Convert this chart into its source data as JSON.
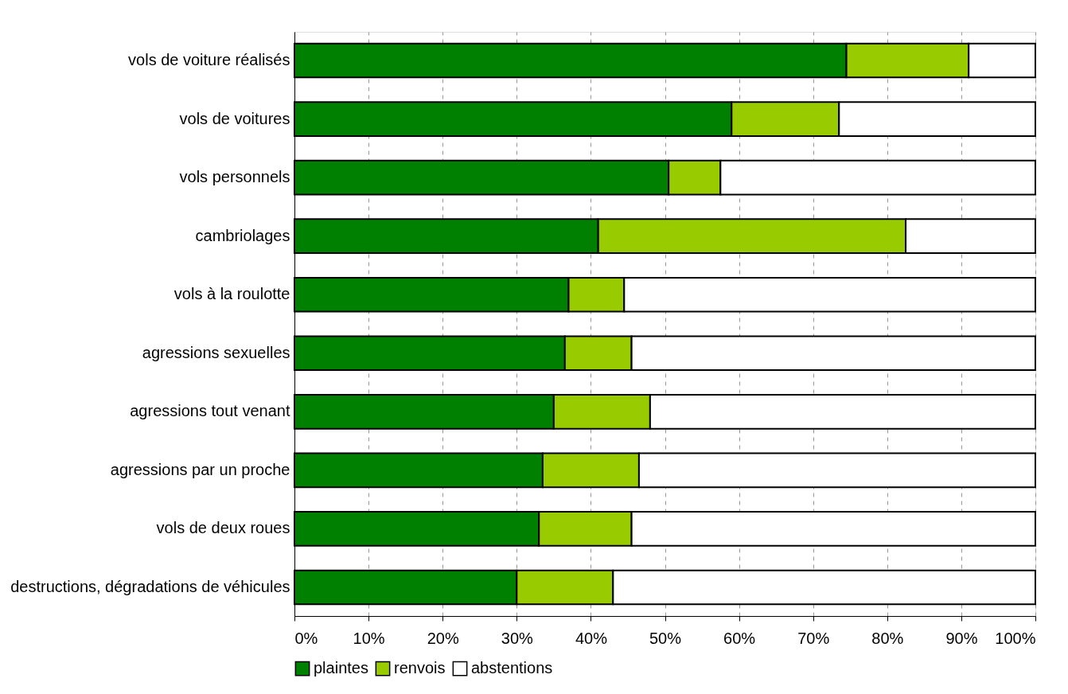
{
  "chart_data": {
    "type": "bar",
    "orientation": "horizontal",
    "stacked": true,
    "categories": [
      "vols de voiture réalisés",
      "vols de voitures",
      "vols personnels",
      "cambriolages",
      "vols à la roulotte",
      "agressions sexuelles",
      "agressions tout venant",
      "agressions par un proche",
      "vols de deux roues",
      "destructions, dégradations de véhicules"
    ],
    "series": [
      {
        "name": "plaintes",
        "color": "#008000",
        "values": [
          74.5,
          59,
          50.5,
          41,
          37,
          36.5,
          35,
          33.5,
          33,
          30
        ]
      },
      {
        "name": "renvois",
        "color": "#99cc00",
        "values": [
          16.5,
          14.5,
          7,
          41.5,
          7.5,
          9,
          13,
          13,
          12.5,
          13
        ]
      },
      {
        "name": "abstentions",
        "color": "#ffffff",
        "values": [
          9,
          26.5,
          42.5,
          17.5,
          55.5,
          54.5,
          52,
          53.5,
          54.5,
          57
        ]
      }
    ],
    "xlim": [
      0,
      100
    ],
    "xticks": [
      {
        "value": 0,
        "label": "0%"
      },
      {
        "value": 10,
        "label": "10%"
      },
      {
        "value": 20,
        "label": "20%"
      },
      {
        "value": 30,
        "label": "30%"
      },
      {
        "value": 40,
        "label": "40%"
      },
      {
        "value": 50,
        "label": "50%"
      },
      {
        "value": 60,
        "label": "60%"
      },
      {
        "value": 70,
        "label": "70%"
      },
      {
        "value": 80,
        "label": "80%"
      },
      {
        "value": 90,
        "label": "90%"
      },
      {
        "value": 100,
        "label": "100%"
      }
    ],
    "grid": "x",
    "legend": "bottom"
  }
}
